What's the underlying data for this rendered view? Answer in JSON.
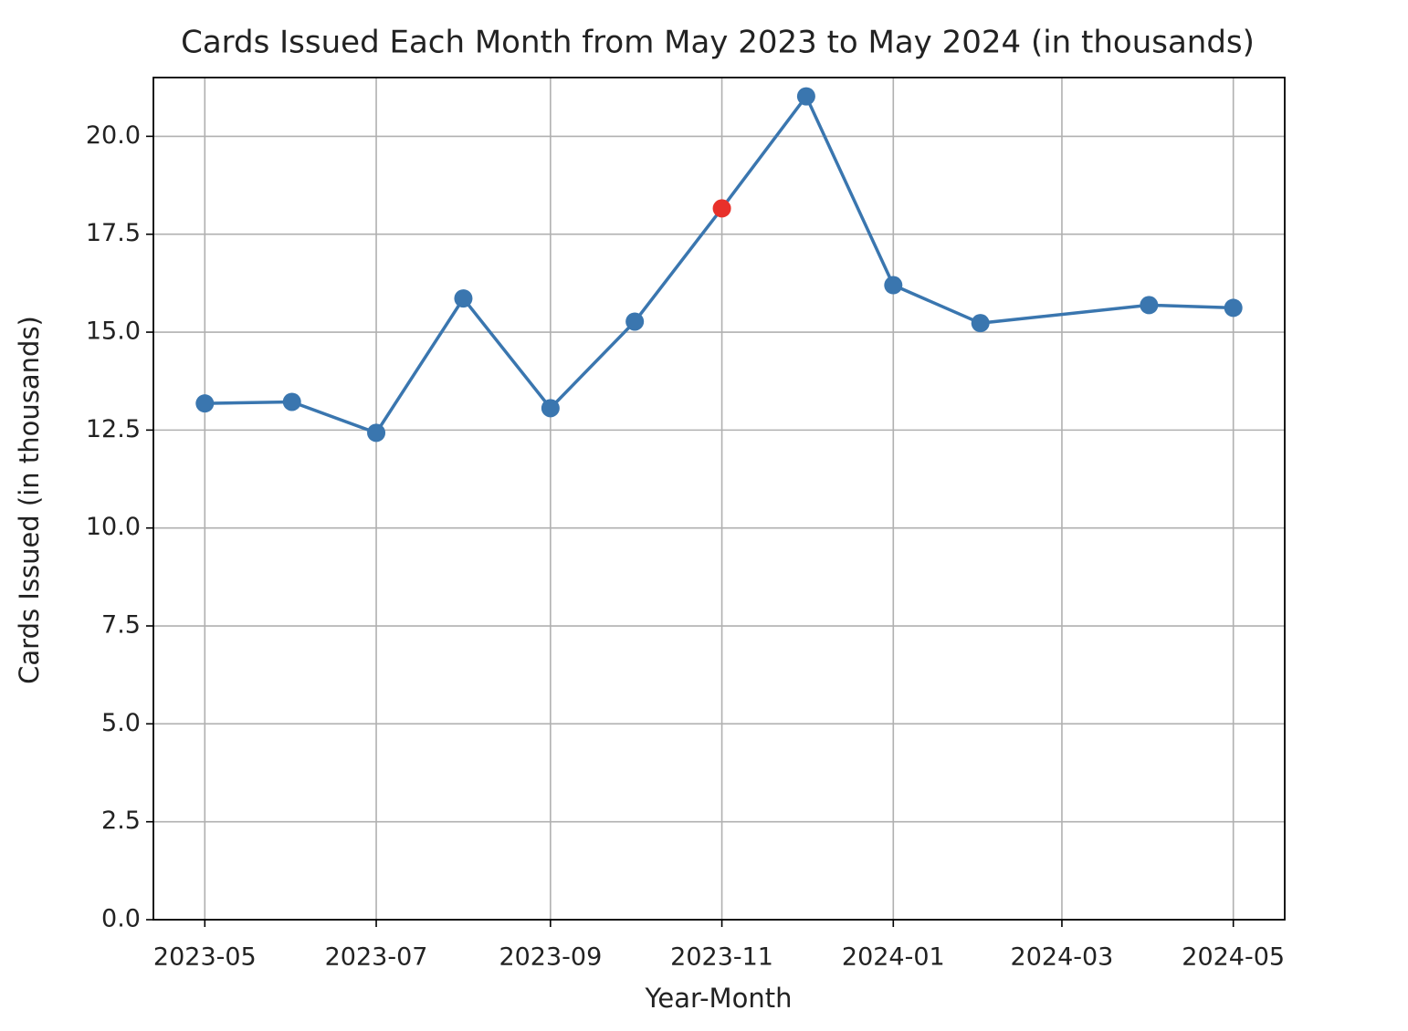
{
  "chart_data": {
    "type": "line",
    "title": "Cards Issued Each Month from May 2023 to May 2024 (in thousands)",
    "x_label": "Year-Month",
    "y_label": "Cards Issued (in thousands)",
    "x": [
      "2023-05",
      "2023-06",
      "2023-07",
      "2023-08",
      "2023-09",
      "2023-10",
      "2023-11",
      "2023-12",
      "2024-01",
      "2024-02",
      "2024-04",
      "2024-05"
    ],
    "series": [
      {
        "color": "#3a76af",
        "values": [
          13.18,
          13.22,
          12.43,
          15.86,
          13.06,
          15.27,
          18.16,
          21.02,
          16.2,
          15.23,
          15.69,
          15.62
        ],
        "marker_colors": [
          "#3a76af",
          "#3a76af",
          "#3a76af",
          "#3a76af",
          "#3a76af",
          "#3a76af",
          "#e8302a",
          "#3a76af",
          "#3a76af",
          "#3a76af",
          "#3a76af",
          "#3a76af"
        ]
      }
    ],
    "xticks": [
      "2023-05",
      "2023-07",
      "2023-09",
      "2023-11",
      "2024-01",
      "2024-03",
      "2024-05"
    ],
    "ylim": [
      0,
      21.5
    ],
    "yticks": [
      {
        "value": 0,
        "label": "0.0"
      },
      2.5,
      {
        "value": 5,
        "label": "5.0"
      },
      7.5,
      {
        "value": 10,
        "label": "10.0"
      },
      12.5,
      {
        "value": 15,
        "label": "15.0"
      },
      17.5,
      {
        "value": 20,
        "label": "20.0"
      }
    ],
    "grid": true
  }
}
